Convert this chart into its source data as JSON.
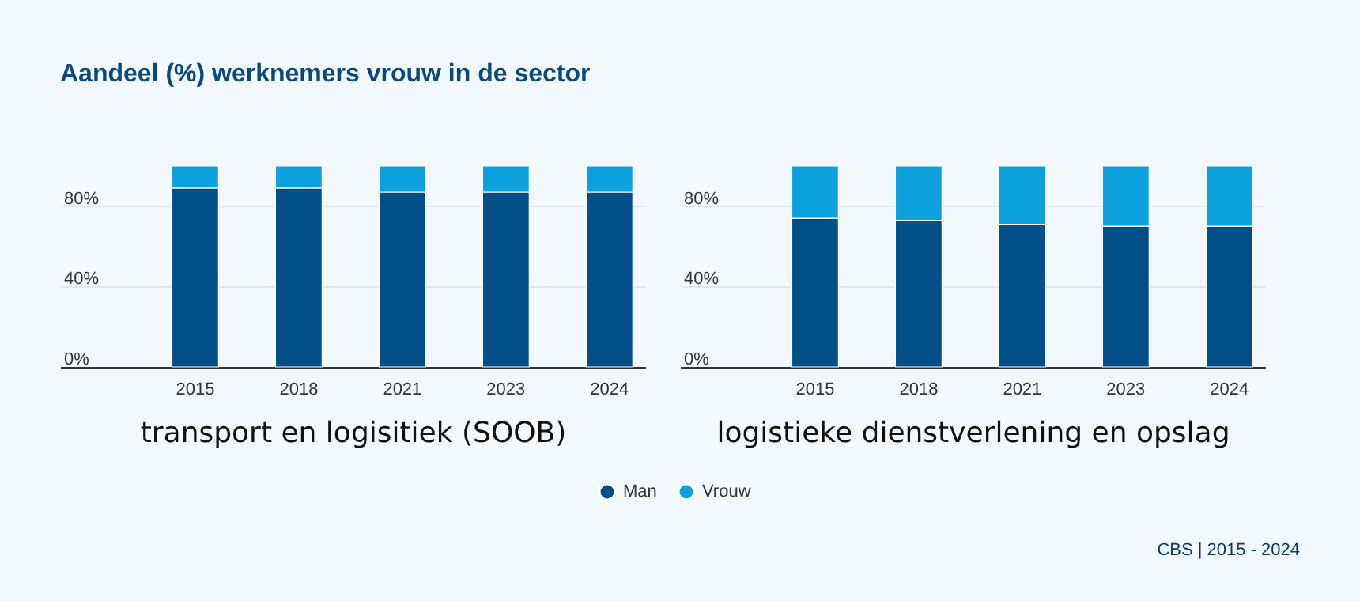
{
  "chart_data": [
    {
      "type": "bar",
      "stacked": true,
      "title": "Aandeel (%) werknemers vrouw in de sector",
      "xlabel": "transport en logisitiek (SOOB)",
      "categories": [
        "2015",
        "2018",
        "2021",
        "2023",
        "2024"
      ],
      "series": [
        {
          "name": "Man",
          "color": "#004f86",
          "values": [
            89,
            89,
            87,
            87,
            87
          ]
        },
        {
          "name": "Vrouw",
          "color": "#0ca0dc",
          "values": [
            11,
            11,
            13,
            13,
            13
          ]
        }
      ],
      "ylim": [
        0,
        100
      ],
      "yticks": [
        {
          "value": 0,
          "label": "0%"
        },
        {
          "value": 40,
          "label": "40%"
        },
        {
          "value": 80,
          "label": "80%"
        }
      ],
      "grid": "y",
      "legend": "bottom"
    },
    {
      "type": "bar",
      "stacked": true,
      "xlabel": "logistieke dienstverlening en opslag",
      "categories": [
        "2015",
        "2018",
        "2021",
        "2023",
        "2024"
      ],
      "series": [
        {
          "color": "#004f86",
          "values": [
            74,
            73,
            71,
            70,
            70
          ]
        },
        {
          "color": "#0ca0dc",
          "values": [
            26,
            27,
            29,
            30,
            30
          ]
        }
      ],
      "ylim": [
        0,
        100
      ],
      "yticks": [
        {
          "value": 0,
          "label": "0%"
        },
        {
          "value": 40,
          "label": "40%"
        },
        {
          "value": 80,
          "label": "80%"
        }
      ],
      "grid": "y",
      "annotations": [
        "CBS | 2015 - 2024"
      ]
    }
  ]
}
